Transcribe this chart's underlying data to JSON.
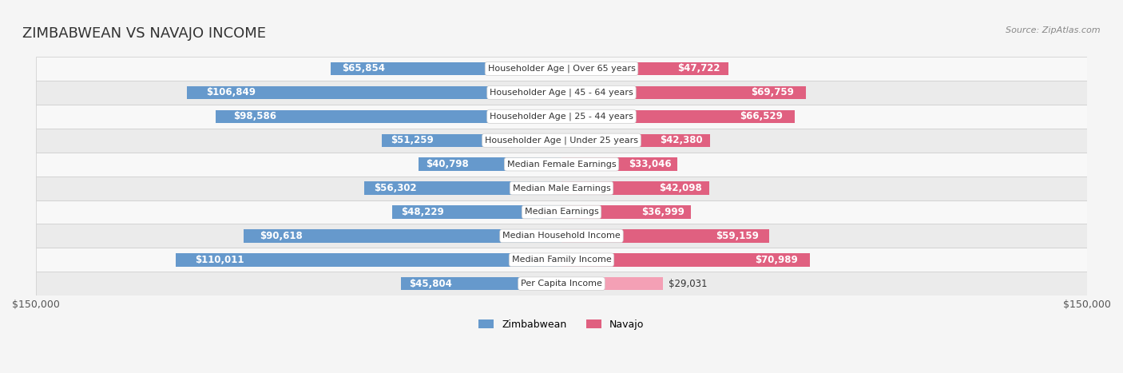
{
  "title": "ZIMBABWEAN VS NAVAJO INCOME",
  "source": "Source: ZipAtlas.com",
  "categories": [
    "Per Capita Income",
    "Median Family Income",
    "Median Household Income",
    "Median Earnings",
    "Median Male Earnings",
    "Median Female Earnings",
    "Householder Age | Under 25 years",
    "Householder Age | 25 - 44 years",
    "Householder Age | 45 - 64 years",
    "Householder Age | Over 65 years"
  ],
  "zimbabwean_values": [
    45804,
    110011,
    90618,
    48229,
    56302,
    40798,
    51259,
    98586,
    106849,
    65854
  ],
  "navajo_values": [
    29031,
    70989,
    59159,
    36999,
    42098,
    33046,
    42380,
    66529,
    69759,
    47722
  ],
  "zimbabwean_labels": [
    "$45,804",
    "$110,011",
    "$90,618",
    "$48,229",
    "$56,302",
    "$40,798",
    "$51,259",
    "$98,586",
    "$106,849",
    "$65,854"
  ],
  "navajo_labels": [
    "$29,031",
    "$70,989",
    "$59,159",
    "$36,999",
    "$42,098",
    "$33,046",
    "$42,380",
    "$66,529",
    "$69,759",
    "$47,722"
  ],
  "zimbabwean_color_light": "#a8c4e0",
  "zimbabwean_color_dark": "#6699cc",
  "navajo_color_light": "#f4a0b5",
  "navajo_color_dark": "#e06080",
  "max_value": 150000,
  "background_color": "#f5f5f5",
  "row_bg_color": "#ffffff",
  "row_alt_bg_color": "#f0f0f0",
  "title_fontsize": 13,
  "label_fontsize": 8.5,
  "legend_fontsize": 9,
  "source_fontsize": 8
}
